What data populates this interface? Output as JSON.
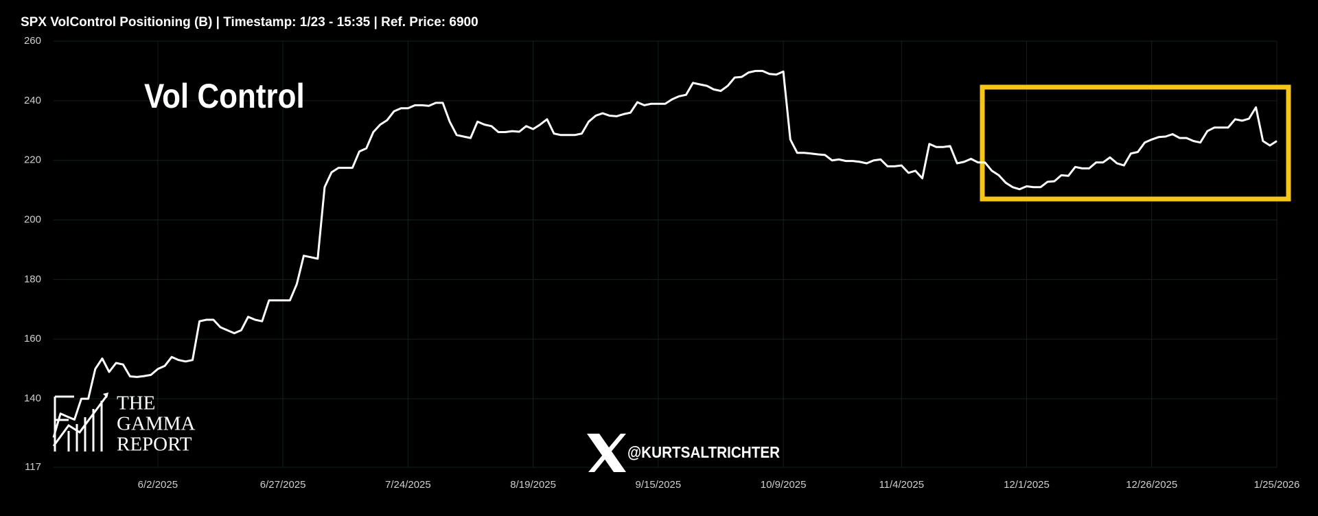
{
  "chart_data": {
    "type": "line",
    "title": "SPX VolControl Positioning (B) | Timestamp: 1/23 - 15:35  | Ref. Price: 6900",
    "annotation": "Vol Control",
    "logo": [
      "THE",
      "GAMMA",
      "REPORT"
    ],
    "handle": "@KURTSALTRICHTER",
    "color": "#ffffff",
    "grid": true,
    "ylim": [
      117,
      260
    ],
    "yticks": [
      117,
      140,
      160,
      180,
      200,
      220,
      240,
      260
    ],
    "categories": [
      null,
      null,
      null,
      null,
      null,
      null,
      null,
      null,
      null,
      null,
      null,
      null,
      null,
      null,
      null,
      "6/2/2025",
      null,
      null,
      null,
      null,
      null,
      null,
      null,
      null,
      null,
      null,
      null,
      null,
      null,
      null,
      null,
      null,
      null,
      "6/27/2025",
      null,
      null,
      null,
      null,
      null,
      null,
      null,
      null,
      null,
      null,
      null,
      null,
      null,
      null,
      null,
      null,
      null,
      "7/24/2025",
      null,
      null,
      null,
      null,
      null,
      null,
      null,
      null,
      null,
      null,
      null,
      null,
      null,
      null,
      null,
      null,
      null,
      "8/19/2025",
      null,
      null,
      null,
      null,
      null,
      null,
      null,
      null,
      null,
      null,
      null,
      null,
      null,
      null,
      null,
      null,
      null,
      "9/15/2025",
      null,
      null,
      null,
      null,
      null,
      null,
      null,
      null,
      null,
      null,
      null,
      null,
      null,
      null,
      null,
      null,
      null,
      "10/9/2025",
      null,
      null,
      null,
      null,
      null,
      null,
      null,
      null,
      null,
      null,
      null,
      null,
      null,
      null,
      null,
      null,
      "11/4/2025",
      null,
      null,
      null,
      null,
      null,
      null,
      null,
      null,
      null,
      null,
      null,
      null,
      null,
      null,
      null,
      null,
      null,
      "12/1/2025",
      null,
      null,
      null,
      null,
      null,
      null,
      null,
      null,
      null,
      null,
      null,
      null,
      null,
      null,
      null,
      null,
      null,
      "12/26/2025",
      null,
      null,
      null,
      null,
      null,
      null,
      null,
      null,
      null,
      null,
      null,
      null,
      null,
      null,
      null,
      null,
      null,
      "1/25/2026"
    ],
    "values": [
      127,
      135,
      134,
      133,
      140,
      140,
      150,
      153.5,
      149,
      152,
      151.5,
      147.5,
      147.3,
      147.6,
      148,
      150,
      151,
      154,
      153,
      152.5,
      153,
      166,
      166.5,
      166.5,
      164,
      163,
      162,
      163,
      167.5,
      166.5,
      166,
      173,
      173,
      173,
      173,
      178.5,
      188,
      187.5,
      187,
      211,
      216,
      217.5,
      217.5,
      217.5,
      223,
      224,
      229.5,
      232,
      233.5,
      236.5,
      237.5,
      237.5,
      238.5,
      238.5,
      238.3,
      239.3,
      239.3,
      233,
      228.5,
      228,
      227.5,
      233,
      232,
      231.5,
      229.5,
      229.5,
      229.8,
      229.6,
      231.5,
      230.5,
      232,
      233.8,
      229,
      228.5,
      228.5,
      228.5,
      229,
      233,
      235,
      235.8,
      235,
      234.8,
      235.5,
      236,
      239.5,
      238.5,
      239,
      239,
      239,
      240.5,
      241.5,
      242,
      246,
      245.5,
      245,
      243.8,
      243.3,
      245,
      247.8,
      248,
      249.5,
      250,
      250,
      249,
      248.8,
      249.8,
      227,
      222.5,
      222.5,
      222.3,
      222,
      221.8,
      220,
      220.3,
      219.8,
      219.8,
      219.5,
      219,
      220,
      220.3,
      218,
      218,
      218.3,
      215.8,
      216.5,
      214,
      225.5,
      224.5,
      224.5,
      224.8,
      219,
      219.5,
      220.5,
      219.3,
      219.3,
      216.5,
      215,
      212.5,
      211,
      210.3,
      211.3,
      211,
      211,
      212.8,
      213,
      215,
      214.8,
      217.8,
      217.3,
      217.3,
      219.3,
      219.3,
      221,
      219,
      218.3,
      222.3,
      222.8,
      226,
      227,
      227.8,
      228,
      228.8,
      227.5,
      227.5,
      226.5,
      226,
      229.8,
      231,
      231,
      231,
      233.8,
      233.3,
      234,
      237.8,
      226.5,
      225,
      226.5
    ]
  }
}
